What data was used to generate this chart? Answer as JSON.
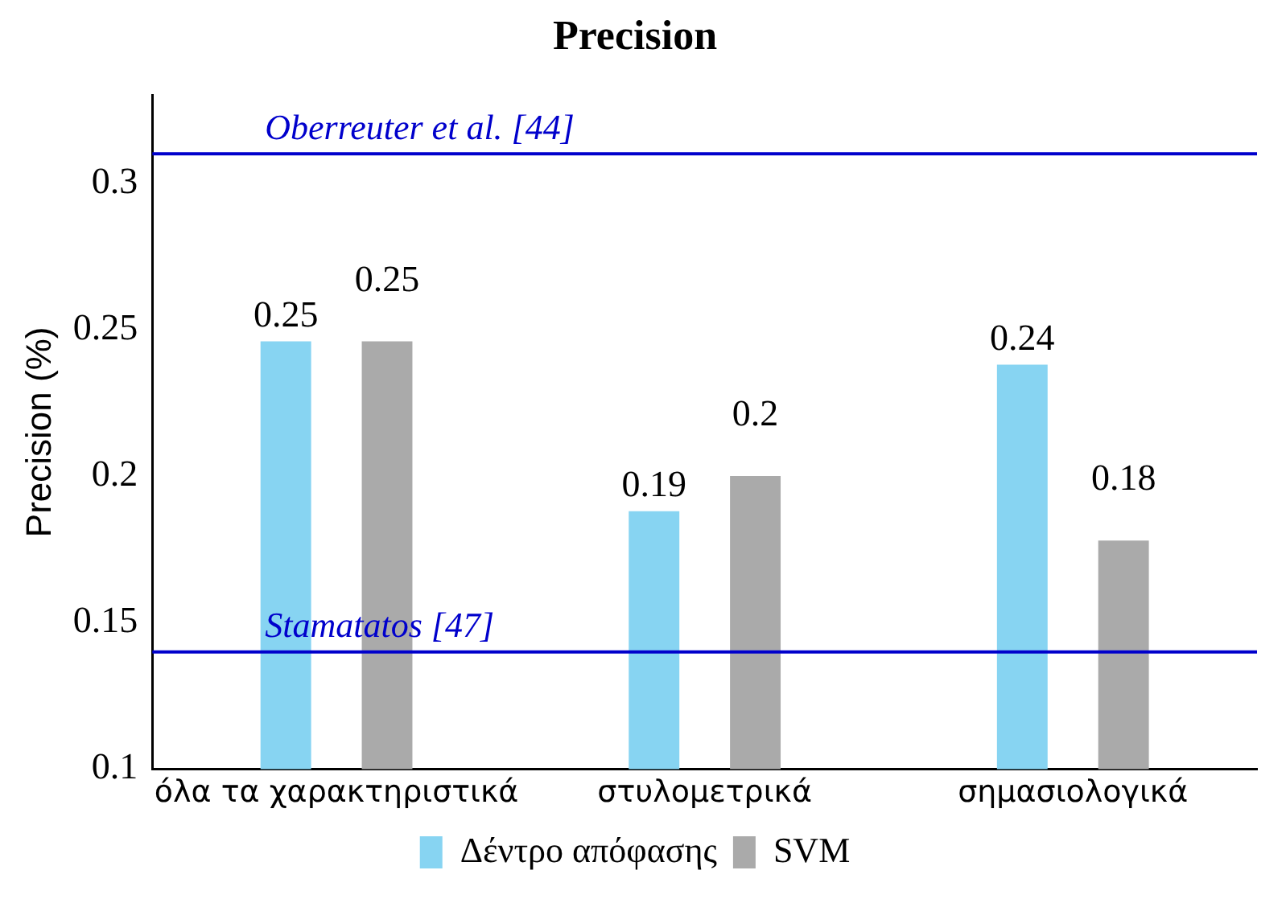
{
  "chart_data": {
    "type": "bar",
    "title": "Precision",
    "ylabel": "Precision (%)",
    "categories": [
      "όλα τα χαρακτηριστικά",
      "στυλομετρικά",
      "σημασιολογικά"
    ],
    "series": [
      {
        "name": "Δέντρο απόφασης",
        "color": "#87d4f2",
        "values": [
          0.246,
          0.188,
          0.238
        ],
        "value_labels": [
          "0.25",
          "0.19",
          "0.24"
        ]
      },
      {
        "name": "SVM",
        "color": "#aaaaaa",
        "values": [
          0.246,
          0.2,
          0.178
        ],
        "value_labels": [
          "0.25",
          "0.2",
          "0.18"
        ]
      }
    ],
    "ylim": [
      0.1,
      0.33
    ],
    "yticks": [
      0.1,
      0.15,
      0.2,
      0.25,
      0.3
    ],
    "grid": false,
    "legend": "bottom",
    "ref_lines": [
      {
        "axis": "y",
        "value": 0.31,
        "label": "Oberreuter et al. [44]",
        "color": "#0000cc"
      },
      {
        "axis": "y",
        "value": 0.14,
        "label": "Stamatatos [47]",
        "color": "#0000cc"
      }
    ]
  }
}
